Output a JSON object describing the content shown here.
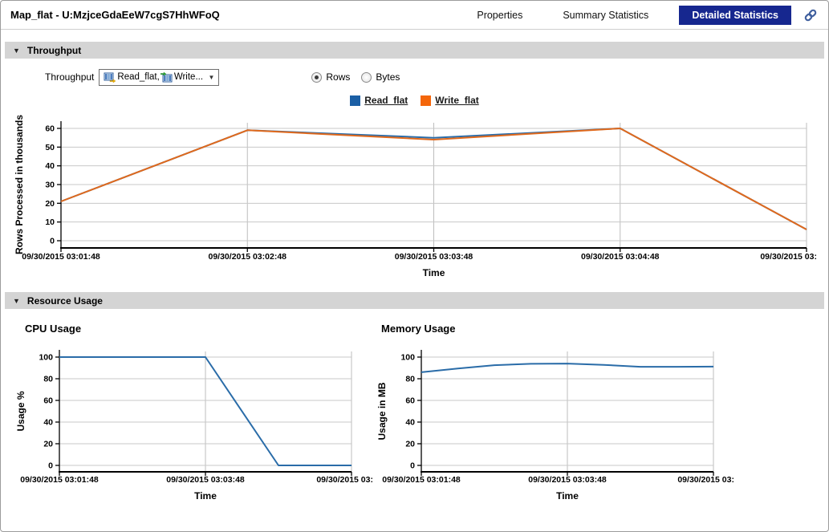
{
  "header": {
    "title": "Map_flat - U:MzjceGdaEeW7cgS7HhWFoQ",
    "tabs": [
      {
        "label": "Properties",
        "active": false
      },
      {
        "label": "Summary Statistics",
        "active": false
      },
      {
        "label": "Detailed Statistics",
        "active": true
      }
    ],
    "active_tab_color": "#16278f"
  },
  "throughput_section": {
    "title": "Throughput",
    "control_label": "Throughput",
    "dropdown": {
      "parts": [
        "Read_flat,",
        "Write..."
      ]
    },
    "radios": [
      {
        "label": "Rows",
        "selected": true
      },
      {
        "label": "Bytes",
        "selected": false
      }
    ],
    "legend": [
      {
        "label": "Read_flat",
        "color": "#1b5fa5"
      },
      {
        "label": "Write_flat",
        "color": "#f4660a"
      }
    ]
  },
  "resource_section": {
    "title": "Resource Usage",
    "cpu_title": "CPU Usage",
    "memory_title": "Memory Usage"
  },
  "chart_data": [
    {
      "id": "throughput",
      "type": "line",
      "xlabel": "Time",
      "ylabel": "Rows Processed in thousands",
      "ylim": [
        0,
        60
      ],
      "ytick_step": 10,
      "xlim": [
        0,
        4
      ],
      "grid": true,
      "legend_position": "top-center",
      "xticks": [
        {
          "pos": 0,
          "label": "09/30/2015 03:01:48"
        },
        {
          "pos": 1,
          "label": "09/30/2015 03:02:48"
        },
        {
          "pos": 2,
          "label": "09/30/2015 03:03:48"
        },
        {
          "pos": 3,
          "label": "09/30/2015 03:04:48"
        },
        {
          "pos": 4,
          "label": "09/30/2015 03:"
        }
      ],
      "series": [
        {
          "name": "Read_flat",
          "color": "#2a6ca8",
          "points": [
            [
              0,
              21
            ],
            [
              1,
              59
            ],
            [
              2,
              55
            ],
            [
              3,
              60
            ],
            [
              4,
              6
            ]
          ]
        },
        {
          "name": "Write_flat",
          "color": "#e0691c",
          "points": [
            [
              0,
              21
            ],
            [
              1,
              59
            ],
            [
              2,
              54
            ],
            [
              3,
              60
            ],
            [
              4,
              6
            ]
          ]
        }
      ]
    },
    {
      "id": "cpu",
      "type": "line",
      "xlabel": "Time",
      "ylabel": "Usage %",
      "ylim": [
        0,
        100
      ],
      "ytick_step": 20,
      "xlim": [
        0,
        4
      ],
      "grid": true,
      "xticks": [
        {
          "pos": 0,
          "label": "09/30/2015 03:01:48"
        },
        {
          "pos": 2,
          "label": "09/30/2015 03:03:48"
        },
        {
          "pos": 4,
          "label": "09/30/2015 03:"
        }
      ],
      "series": [
        {
          "name": "CPU",
          "color": "#2a6ca8",
          "points": [
            [
              0,
              100
            ],
            [
              2,
              100
            ],
            [
              3,
              0
            ],
            [
              4,
              0
            ]
          ]
        }
      ]
    },
    {
      "id": "memory",
      "type": "line",
      "xlabel": "Time",
      "ylabel": "Usage in MB",
      "ylim": [
        0,
        100
      ],
      "ytick_step": 20,
      "xlim": [
        0,
        4
      ],
      "grid": true,
      "xticks": [
        {
          "pos": 0,
          "label": "09/30/2015 03:01:48"
        },
        {
          "pos": 2,
          "label": "09/30/2015 03:03:48"
        },
        {
          "pos": 4,
          "label": "09/30/2015 03:"
        }
      ],
      "series": [
        {
          "name": "Memory",
          "color": "#2a6ca8",
          "points": [
            [
              0,
              86
            ],
            [
              0.5,
              89.5
            ],
            [
              1,
              92.5
            ],
            [
              1.5,
              93.8
            ],
            [
              2,
              94
            ],
            [
              2.5,
              92.8
            ],
            [
              3,
              91
            ],
            [
              3.5,
              91
            ],
            [
              4,
              91.2
            ]
          ]
        }
      ]
    }
  ]
}
